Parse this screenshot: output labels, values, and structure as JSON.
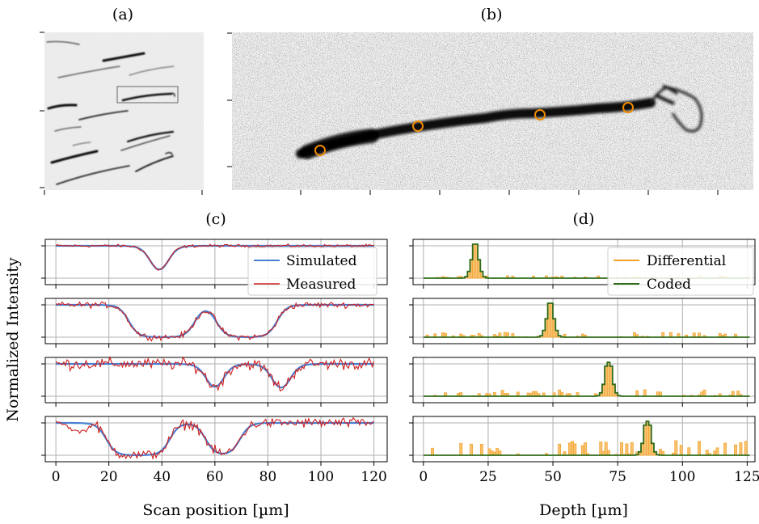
{
  "panel_labels": {
    "a": "(a)",
    "b": "(b)",
    "c": "(c)",
    "d": "(d)"
  },
  "colors": {
    "simulated": "#4a7fd1",
    "measured": "#cc1f1f",
    "differential": "#f4a02a",
    "differential_fill": "#f7c270",
    "coded": "#2e6b1a",
    "marker": "#f08a00"
  },
  "panel_a": {
    "box_visible": true
  },
  "panel_b": {
    "marker_count": 4
  },
  "chart_data": [
    {
      "type": "line",
      "panel": "c",
      "xlabel": "Scan position [µm]",
      "ylabel": "Normalized Intensity",
      "xlim": [
        -4,
        125
      ],
      "xticks": [
        0,
        20,
        40,
        60,
        80,
        100,
        120
      ],
      "xtick_labels": [
        "0",
        "20",
        "40",
        "60",
        "80",
        "100",
        "120"
      ],
      "grid": true,
      "legend": {
        "placement": "top-right",
        "entries": [
          "Simulated",
          "Measured"
        ]
      },
      "subplots": [
        {
          "dips": [
            [
              39,
              3.2
            ]
          ]
        },
        {
          "dips": [
            [
              40,
              12.5
            ],
            [
              72,
              11.5
            ]
          ]
        },
        {
          "dips": [
            [
              60,
              3
            ],
            [
              85,
              3.2
            ]
          ]
        },
        {
          "dips": [
            [
              31,
              12
            ],
            [
              63,
              6.5
            ]
          ]
        }
      ]
    },
    {
      "type": "bar",
      "panel": "d",
      "xlabel": "Depth [µm]",
      "xlim": [
        -4,
        128
      ],
      "xticks": [
        0,
        25,
        50,
        75,
        100,
        125
      ],
      "xtick_labels": [
        "0",
        "25",
        "50",
        "75",
        "100",
        "125"
      ],
      "grid": true,
      "legend": {
        "placement": "top-right",
        "entries": [
          "Differential",
          "Coded"
        ]
      },
      "subplots": [
        {
          "peak": 19.5,
          "noise_level": 0.08
        },
        {
          "peak": 48.5,
          "noise_level": 0.15
        },
        {
          "peak": 71,
          "noise_level": 0.2
        },
        {
          "peak": 86,
          "noise_level": 0.35
        }
      ]
    }
  ]
}
